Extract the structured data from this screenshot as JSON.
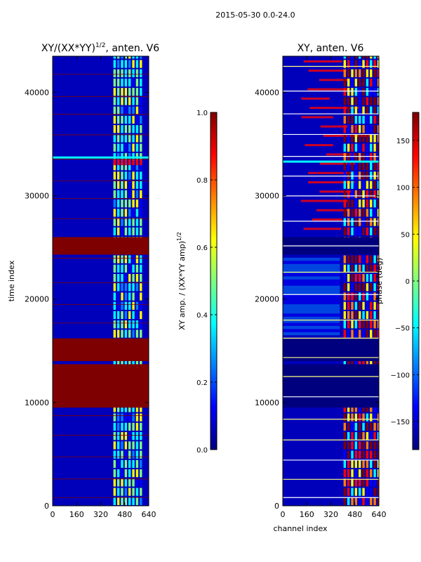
{
  "suptitle": "2015-05-30 0.0-24.0",
  "colors": {
    "jet": [
      "#00007f",
      "#0000ff",
      "#007fff",
      "#00ffff",
      "#7fff7f",
      "#ffff00",
      "#ff7f00",
      "#ff0000",
      "#7f0000"
    ],
    "background": "#0000bb",
    "flag": "#7f0000",
    "line_white": "#ffffff",
    "line_yellow": "#ffff80"
  },
  "chart_data": [
    {
      "type": "heatmap",
      "title_main": "XY/(XX*YY)",
      "title_sup": "1/2",
      "title_suffix": ", anten. V6",
      "xlabel": "",
      "ylabel": "time index",
      "xlim": [
        0,
        640
      ],
      "ylim": [
        0,
        43500
      ],
      "xticks": [
        0,
        160,
        320,
        480,
        640
      ],
      "yticks": [
        0,
        10000,
        20000,
        30000,
        40000
      ],
      "bright_channel_range": [
        400,
        600
      ],
      "flagged_time_bands": [
        [
          9500,
          13700
        ],
        [
          14000,
          16200
        ],
        [
          24300,
          26000
        ]
      ],
      "highlight_rows": [
        33700
      ],
      "colorbar": {
        "label_main": "XY amp. / (XX*YY amp)",
        "label_sup": "1/2",
        "vmin": 0.0,
        "vmax": 1.0,
        "ticks": [
          0.0,
          0.2,
          0.4,
          0.6,
          0.8,
          1.0
        ],
        "tick_labels": [
          "0.0",
          "0.2",
          "0.4",
          "0.6",
          "0.8",
          "1.0"
        ]
      }
    },
    {
      "type": "heatmap",
      "title": "XY, anten. V6",
      "xlabel": "channel index",
      "ylabel": "",
      "xlim": [
        0,
        640
      ],
      "ylim": [
        0,
        43500
      ],
      "xticks": [
        0,
        160,
        320,
        480,
        640
      ],
      "yticks": [
        0,
        10000,
        20000,
        30000,
        40000
      ],
      "bright_channel_range": [
        400,
        640
      ],
      "flagged_time_bands": [
        [
          9500,
          13700
        ],
        [
          14000,
          16200
        ],
        [
          24300,
          26000
        ]
      ],
      "highlight_rows": [
        33300
      ],
      "colorbar": {
        "label": "phase (deg)",
        "vmin": -180,
        "vmax": 180,
        "ticks": [
          -150,
          -100,
          -50,
          0,
          50,
          100,
          150
        ],
        "tick_labels": [
          "−150",
          "−100",
          "−50",
          "0",
          "50",
          "100",
          "150"
        ]
      }
    }
  ]
}
